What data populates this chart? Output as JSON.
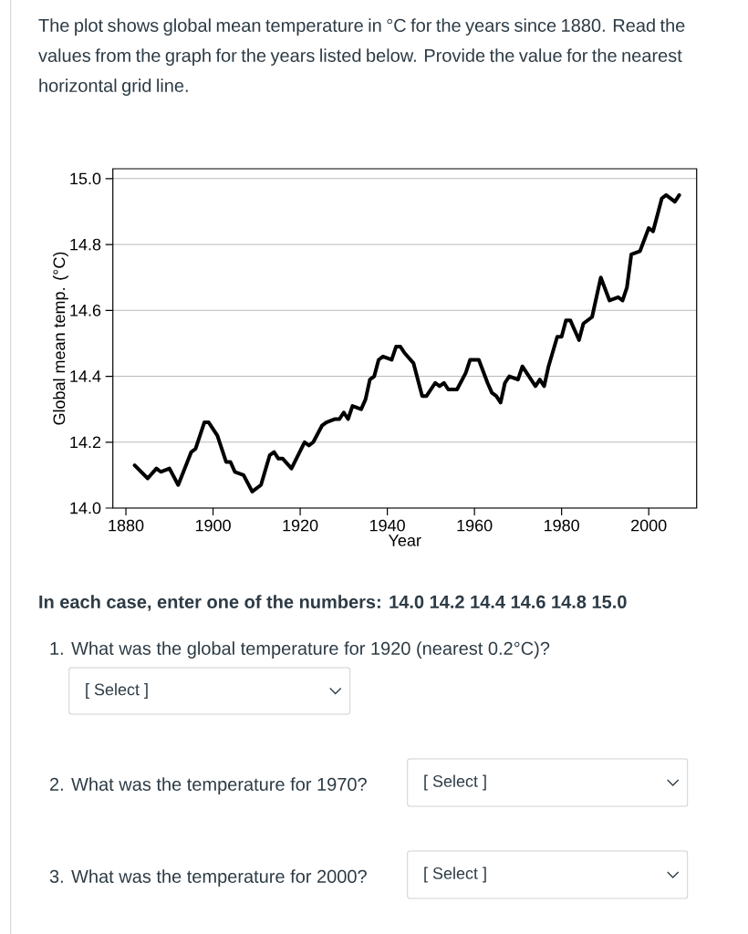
{
  "chart_data": {
    "type": "line",
    "xlabel": "Year",
    "ylabel": "Global mean temp. (°C)",
    "xlim": [
      1877,
      2011
    ],
    "ylim": [
      14.0,
      15.03
    ],
    "xticks": [
      1880,
      1900,
      1920,
      1940,
      1960,
      1980,
      2000
    ],
    "yticks": [
      {
        "value": 14.0,
        "label": "14.0"
      },
      {
        "value": 14.2,
        "label": "14.2"
      },
      {
        "value": 14.4,
        "label": "14.4"
      },
      {
        "value": 14.6,
        "label": "14.6"
      },
      {
        "value": 14.8,
        "label": "14.8"
      },
      {
        "value": 15.0,
        "label": "15.0"
      }
    ],
    "grid": "y",
    "line_style": "solid",
    "series": [
      {
        "color": "#000000",
        "x": [
          1882,
          1885,
          1887,
          1888,
          1890,
          1892,
          1895,
          1896,
          1898,
          1899,
          1901,
          1903,
          1904,
          1905,
          1907,
          1909,
          1911,
          1913,
          1914,
          1915,
          1916,
          1918,
          1921,
          1922,
          1923,
          1925,
          1926,
          1928,
          1929,
          1930,
          1931,
          1932,
          1934,
          1935,
          1936,
          1937,
          1938,
          1939,
          1941,
          1942,
          1943,
          1944,
          1946,
          1948,
          1949,
          1951,
          1952,
          1953,
          1954,
          1956,
          1958,
          1959,
          1961,
          1963,
          1964,
          1965,
          1966,
          1967,
          1968,
          1970,
          1971,
          1973,
          1974,
          1975,
          1976,
          1977,
          1979,
          1980,
          1981,
          1982,
          1984,
          1985,
          1987,
          1989,
          1991,
          1993,
          1994,
          1995,
          1996,
          1998,
          2000,
          2001,
          2003,
          2004,
          2006,
          2007
        ],
        "values": [
          14.13,
          14.09,
          14.12,
          14.11,
          14.12,
          14.07,
          14.17,
          14.18,
          14.26,
          14.26,
          14.22,
          14.14,
          14.14,
          14.11,
          14.1,
          14.05,
          14.07,
          14.16,
          14.17,
          14.15,
          14.15,
          14.12,
          14.2,
          14.19,
          14.2,
          14.25,
          14.26,
          14.27,
          14.27,
          14.29,
          14.27,
          14.31,
          14.3,
          14.33,
          14.39,
          14.4,
          14.45,
          14.46,
          14.45,
          14.49,
          14.49,
          14.47,
          14.44,
          14.34,
          14.34,
          14.38,
          14.37,
          14.38,
          14.36,
          14.36,
          14.41,
          14.45,
          14.45,
          14.38,
          14.35,
          14.34,
          14.32,
          14.38,
          14.4,
          14.39,
          14.43,
          14.39,
          14.37,
          14.39,
          14.37,
          14.43,
          14.52,
          14.52,
          14.57,
          14.57,
          14.51,
          14.56,
          14.58,
          14.7,
          14.63,
          14.64,
          14.63,
          14.67,
          14.77,
          14.78,
          14.85,
          14.84,
          14.94,
          14.95,
          14.93,
          14.95
        ]
      }
    ],
    "annotations": [
      "The plot shows global mean temperature in °C for the years since 1880. Read the values from the graph for the years listed below. Provide the value for the nearest horizontal grid line.",
      "In each case, enter one of the numbers: 14.0 14.2 14.4 14.6 14.8 15.0",
      "1. What was the global temperature for 1920 (nearest 0.2°C)?",
      "[ Select ]",
      "2. What was the temperature for 1970?",
      "[ Select ]",
      "3. What was the temperature for 2000?",
      "[ Select ]"
    ]
  }
}
